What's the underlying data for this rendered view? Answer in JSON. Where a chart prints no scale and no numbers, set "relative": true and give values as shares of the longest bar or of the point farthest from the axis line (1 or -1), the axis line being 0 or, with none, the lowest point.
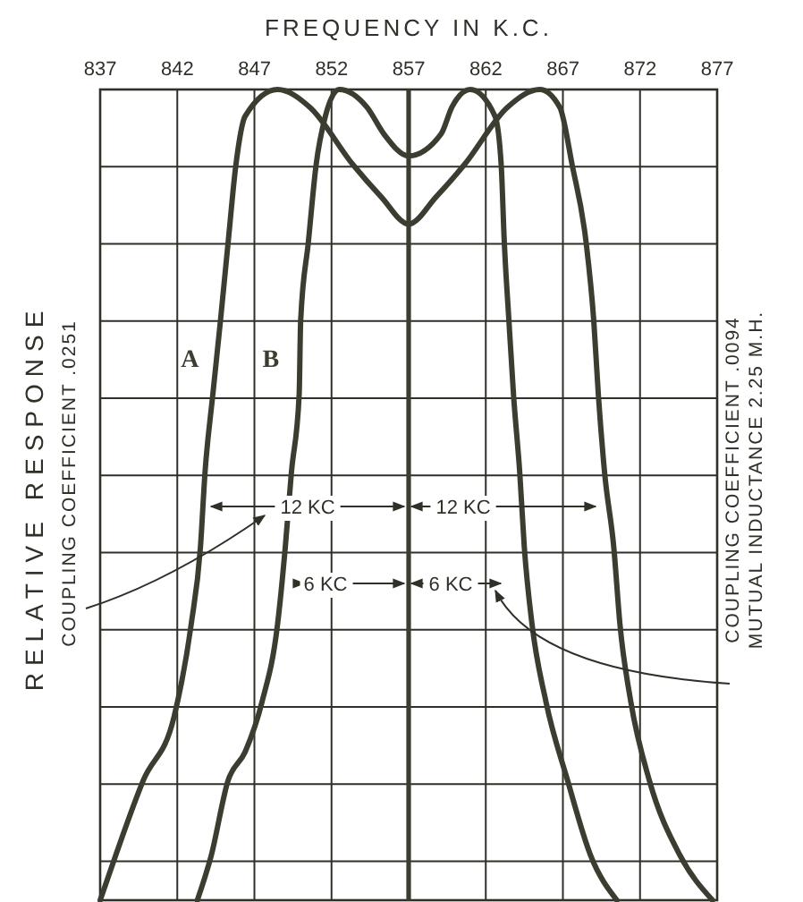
{
  "chart_data": {
    "type": "line",
    "xlabel": "FREQUENCY IN K.C.",
    "ylabel": "RELATIVE RESPONSE",
    "relative": true,
    "xlim": [
      837,
      877
    ],
    "xticks": [
      837,
      842,
      847,
      852,
      857,
      862,
      867,
      872,
      877
    ],
    "grid": true,
    "ref_lines": [
      {
        "axis": "x",
        "value": 857,
        "color": "#3a3d30"
      }
    ],
    "series": [
      {
        "name": "A",
        "color": "#3a3d30",
        "x": [
          837,
          838,
          839.8,
          841.8,
          842.9,
          843.5,
          843.8,
          844.3,
          844.8,
          845.3,
          845.8,
          846.4,
          848.5,
          850.6,
          853.4,
          855.2,
          857,
          858.8,
          860.6,
          863.4,
          865.5,
          866.8,
          867.6,
          868.5,
          869,
          869.3,
          869.7,
          870.3,
          870.7,
          871.4,
          872.6,
          874.6,
          876.7
        ],
        "values": [
          0,
          0.055,
          0.148,
          0.227,
          0.34,
          0.435,
          0.528,
          0.623,
          0.715,
          0.812,
          0.907,
          0.967,
          1,
          0.978,
          0.907,
          0.868,
          0.834,
          0.868,
          0.907,
          0.978,
          1,
          0.978,
          0.907,
          0.812,
          0.715,
          0.623,
          0.528,
          0.435,
          0.34,
          0.245,
          0.148,
          0.055,
          0
        ]
      },
      {
        "name": "B",
        "color": "#3a3d30",
        "x": [
          843.3,
          844.2,
          845.3,
          846.4,
          847.5,
          848.5,
          849,
          849.4,
          849.9,
          850,
          850.5,
          851,
          851.6,
          852.5,
          854.3,
          855.4,
          857,
          859.1,
          859.8,
          861,
          862.6,
          863,
          863.2,
          863.5,
          863.8,
          864.2,
          864.5,
          865,
          865.9,
          867.3,
          868.8,
          870.5
        ],
        "values": [
          0,
          0.055,
          0.148,
          0.183,
          0.245,
          0.34,
          0.435,
          0.528,
          0.623,
          0.715,
          0.812,
          0.907,
          0.967,
          1,
          0.978,
          0.945,
          0.918,
          0.945,
          0.978,
          1,
          0.967,
          0.907,
          0.812,
          0.715,
          0.623,
          0.528,
          0.435,
          0.34,
          0.245,
          0.148,
          0.055,
          0
        ]
      }
    ],
    "annotations": [
      "COUPLING COEFFICIENT .0251",
      "COUPLING COEFFICIENT .0094",
      "MUTUAL INDUCTANCE 2.25 M.H.",
      "12 KC",
      "12 KC",
      "6 KC",
      "6 KC"
    ]
  }
}
